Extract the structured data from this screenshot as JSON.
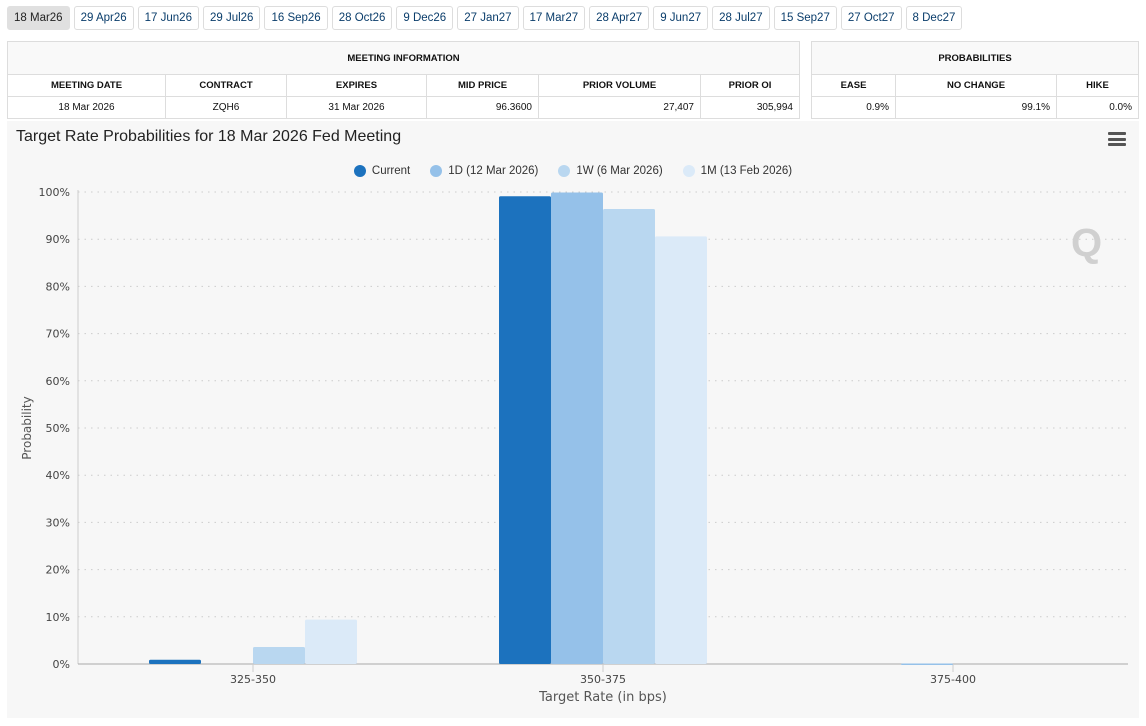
{
  "tabs": [
    "18 Mar26",
    "29 Apr26",
    "17 Jun26",
    "29 Jul26",
    "16 Sep26",
    "28 Oct26",
    "9 Dec26",
    "27 Jan27",
    "17 Mar27",
    "28 Apr27",
    "9 Jun27",
    "28 Jul27",
    "15 Sep27",
    "27 Oct27",
    "8 Dec27"
  ],
  "active_tab": "18 Mar26",
  "meeting_info": {
    "header": "MEETING INFORMATION",
    "columns": [
      "MEETING DATE",
      "CONTRACT",
      "EXPIRES",
      "MID PRICE",
      "PRIOR VOLUME",
      "PRIOR OI"
    ],
    "row": [
      "18 Mar 2026",
      "ZQH6",
      "31 Mar 2026",
      "96.3600",
      "27,407",
      "305,994"
    ]
  },
  "probabilities": {
    "header": "PROBABILITIES",
    "columns": [
      "EASE",
      "NO CHANGE",
      "HIKE"
    ],
    "row": [
      "0.9%",
      "99.1%",
      "0.0%"
    ]
  },
  "chart_data": {
    "type": "bar",
    "title": "Target Rate Probabilities for 18 Mar 2026 Fed Meeting",
    "xlabel": "Target Rate (in bps)",
    "ylabel": "Probability",
    "categories": [
      "325-350",
      "350-375",
      "375-400"
    ],
    "ylim": [
      0,
      100
    ],
    "yticks": [
      "0%",
      "10%",
      "20%",
      "30%",
      "40%",
      "50%",
      "60%",
      "70%",
      "80%",
      "90%",
      "100%"
    ],
    "grid": true,
    "legend_position": "top-center",
    "series": [
      {
        "name": "Current",
        "color": "#1c72be",
        "values": [
          0.9,
          99.1,
          0
        ]
      },
      {
        "name": "1D (12 Mar 2026)",
        "color": "#95c1e9",
        "values": [
          0,
          99.9,
          0.1
        ]
      },
      {
        "name": "1W (6 Mar 2026)",
        "color": "#b9d7f0",
        "values": [
          3.6,
          96.4,
          0
        ]
      },
      {
        "name": "1M (13 Feb 2026)",
        "color": "#dbeaf8",
        "values": [
          9.4,
          90.6,
          0
        ]
      }
    ]
  }
}
